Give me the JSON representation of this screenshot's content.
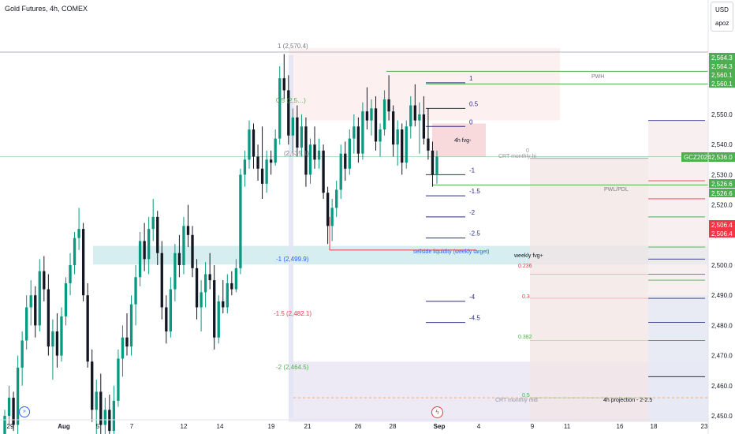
{
  "header": {
    "symbol_title": "Gold Futures, 4h, COMEX",
    "currency": "USD",
    "user": "apoz"
  },
  "icons": {
    "go_to_start": "double-chevron-right-icon",
    "event": "lightning-icon"
  },
  "colors": {
    "up": "#089981",
    "down": "#131722",
    "red": "#f23645",
    "green": "#4caf50",
    "blue": "#2a2e80",
    "accent": "#2962ff"
  },
  "chart_data": {
    "type": "candlestick",
    "instrument": "Gold Futures",
    "timeframe": "4h",
    "exchange": "COMEX",
    "ylim": [
      2448,
      2574
    ],
    "y_ticks": [
      2450,
      2460,
      2470,
      2480,
      2490,
      2500,
      2510,
      2520,
      2530,
      2540,
      2550
    ],
    "x_tick_labels": [
      "29",
      "Aug",
      "5",
      "7",
      "12",
      "14",
      "19",
      "21",
      "26",
      "28",
      "Sep",
      "4",
      "9",
      "11",
      "16",
      "18",
      "23"
    ],
    "last_price_label": {
      "symbol": "GCZ2024",
      "value": "2,536.0"
    },
    "price_labels": [
      {
        "text": "2,564.3",
        "color": "#4caf50"
      },
      {
        "text": "2,564.3",
        "color": "#4caf50"
      },
      {
        "text": "2,560.1",
        "color": "#4caf50"
      },
      {
        "text": "2,560.1",
        "color": "#4caf50"
      },
      {
        "text": "2,526.6",
        "color": "#4caf50"
      },
      {
        "text": "2,526.6",
        "color": "#4caf50"
      },
      {
        "text": "2,506.4",
        "color": "#f23645"
      },
      {
        "text": "2,506.4",
        "color": "#f23645"
      }
    ],
    "fib_labels": [
      "1 (2,570.4)",
      "0.5 (2,5…)",
      "(2,535.1)",
      "-1 (2,499.9)",
      "-1.5 (2,482.1)",
      "-2 (2,464.5)"
    ],
    "projection_levels": [
      "1",
      "0.5",
      "0",
      "-1",
      "-1.5",
      "-2",
      "-2.5",
      "-4",
      "-4.5"
    ],
    "annotations": [
      "PWH",
      "PWL/PDL",
      "4h fvg-",
      "sellside liquidity (weekly target)",
      "weekly fvg+",
      "CRT monthly hi",
      "CRT monthly mid",
      "4h projection - 2-2.5",
      "0",
      "0.236",
      "0.3",
      "0.382",
      "0.5"
    ],
    "candles": [
      {
        "o": 2444,
        "h": 2452,
        "l": 2440,
        "c": 2450
      },
      {
        "o": 2450,
        "h": 2460,
        "l": 2447,
        "c": 2456
      },
      {
        "o": 2456,
        "h": 2458,
        "l": 2445,
        "c": 2447
      },
      {
        "o": 2447,
        "h": 2470,
        "l": 2444,
        "c": 2466
      },
      {
        "o": 2466,
        "h": 2478,
        "l": 2460,
        "c": 2475
      },
      {
        "o": 2475,
        "h": 2490,
        "l": 2472,
        "c": 2486
      },
      {
        "o": 2486,
        "h": 2495,
        "l": 2480,
        "c": 2490
      },
      {
        "o": 2490,
        "h": 2493,
        "l": 2476,
        "c": 2480
      },
      {
        "o": 2480,
        "h": 2502,
        "l": 2478,
        "c": 2498
      },
      {
        "o": 2498,
        "h": 2503,
        "l": 2488,
        "c": 2492
      },
      {
        "o": 2492,
        "h": 2497,
        "l": 2470,
        "c": 2473
      },
      {
        "o": 2473,
        "h": 2482,
        "l": 2462,
        "c": 2478
      },
      {
        "o": 2478,
        "h": 2484,
        "l": 2466,
        "c": 2470
      },
      {
        "o": 2470,
        "h": 2486,
        "l": 2468,
        "c": 2483
      },
      {
        "o": 2483,
        "h": 2496,
        "l": 2480,
        "c": 2494
      },
      {
        "o": 2494,
        "h": 2504,
        "l": 2490,
        "c": 2500
      },
      {
        "o": 2500,
        "h": 2511,
        "l": 2497,
        "c": 2509
      },
      {
        "o": 2509,
        "h": 2519,
        "l": 2505,
        "c": 2512
      },
      {
        "o": 2512,
        "h": 2514,
        "l": 2488,
        "c": 2490
      },
      {
        "o": 2490,
        "h": 2494,
        "l": 2466,
        "c": 2468
      },
      {
        "o": 2468,
        "h": 2472,
        "l": 2448,
        "c": 2452
      },
      {
        "o": 2452,
        "h": 2462,
        "l": 2444,
        "c": 2458
      },
      {
        "o": 2458,
        "h": 2464,
        "l": 2444,
        "c": 2447
      },
      {
        "o": 2447,
        "h": 2456,
        "l": 2440,
        "c": 2452
      },
      {
        "o": 2452,
        "h": 2457,
        "l": 2442,
        "c": 2445
      },
      {
        "o": 2445,
        "h": 2460,
        "l": 2443,
        "c": 2455
      },
      {
        "o": 2455,
        "h": 2472,
        "l": 2453,
        "c": 2469
      },
      {
        "o": 2469,
        "h": 2480,
        "l": 2463,
        "c": 2476
      },
      {
        "o": 2476,
        "h": 2484,
        "l": 2470,
        "c": 2473
      },
      {
        "o": 2473,
        "h": 2490,
        "l": 2470,
        "c": 2487
      },
      {
        "o": 2487,
        "h": 2500,
        "l": 2480,
        "c": 2496
      },
      {
        "o": 2496,
        "h": 2511,
        "l": 2493,
        "c": 2508
      },
      {
        "o": 2508,
        "h": 2514,
        "l": 2498,
        "c": 2502
      },
      {
        "o": 2502,
        "h": 2516,
        "l": 2497,
        "c": 2512
      },
      {
        "o": 2512,
        "h": 2522,
        "l": 2508,
        "c": 2516
      },
      {
        "o": 2516,
        "h": 2518,
        "l": 2500,
        "c": 2504
      },
      {
        "o": 2504,
        "h": 2508,
        "l": 2482,
        "c": 2486
      },
      {
        "o": 2486,
        "h": 2490,
        "l": 2474,
        "c": 2478
      },
      {
        "o": 2478,
        "h": 2496,
        "l": 2476,
        "c": 2492
      },
      {
        "o": 2492,
        "h": 2507,
        "l": 2488,
        "c": 2504
      },
      {
        "o": 2504,
        "h": 2510,
        "l": 2496,
        "c": 2500
      },
      {
        "o": 2500,
        "h": 2516,
        "l": 2497,
        "c": 2513
      },
      {
        "o": 2513,
        "h": 2520,
        "l": 2506,
        "c": 2510
      },
      {
        "o": 2510,
        "h": 2513,
        "l": 2496,
        "c": 2499
      },
      {
        "o": 2499,
        "h": 2502,
        "l": 2482,
        "c": 2486
      },
      {
        "o": 2486,
        "h": 2495,
        "l": 2478,
        "c": 2491
      },
      {
        "o": 2491,
        "h": 2501,
        "l": 2486,
        "c": 2497
      },
      {
        "o": 2497,
        "h": 2504,
        "l": 2492,
        "c": 2495
      },
      {
        "o": 2495,
        "h": 2500,
        "l": 2472,
        "c": 2476
      },
      {
        "o": 2476,
        "h": 2490,
        "l": 2474,
        "c": 2488
      },
      {
        "o": 2488,
        "h": 2495,
        "l": 2484,
        "c": 2486
      },
      {
        "o": 2486,
        "h": 2497,
        "l": 2484,
        "c": 2494
      },
      {
        "o": 2494,
        "h": 2498,
        "l": 2490,
        "c": 2492
      },
      {
        "o": 2492,
        "h": 2502,
        "l": 2491,
        "c": 2499
      },
      {
        "o": 2499,
        "h": 2532,
        "l": 2497,
        "c": 2530
      },
      {
        "o": 2530,
        "h": 2538,
        "l": 2526,
        "c": 2535
      },
      {
        "o": 2535,
        "h": 2548,
        "l": 2532,
        "c": 2545
      },
      {
        "o": 2545,
        "h": 2547,
        "l": 2532,
        "c": 2536
      },
      {
        "o": 2536,
        "h": 2540,
        "l": 2528,
        "c": 2532
      },
      {
        "o": 2532,
        "h": 2546,
        "l": 2522,
        "c": 2527
      },
      {
        "o": 2527,
        "h": 2538,
        "l": 2524,
        "c": 2535
      },
      {
        "o": 2535,
        "h": 2538,
        "l": 2530,
        "c": 2534
      },
      {
        "o": 2534,
        "h": 2545,
        "l": 2533,
        "c": 2542
      },
      {
        "o": 2542,
        "h": 2566,
        "l": 2540,
        "c": 2562
      },
      {
        "o": 2562,
        "h": 2570,
        "l": 2555,
        "c": 2558
      },
      {
        "o": 2558,
        "h": 2563,
        "l": 2540,
        "c": 2543
      },
      {
        "o": 2543,
        "h": 2552,
        "l": 2538,
        "c": 2549
      },
      {
        "o": 2549,
        "h": 2553,
        "l": 2536,
        "c": 2539
      },
      {
        "o": 2539,
        "h": 2550,
        "l": 2536,
        "c": 2546
      },
      {
        "o": 2546,
        "h": 2549,
        "l": 2526,
        "c": 2530
      },
      {
        "o": 2530,
        "h": 2542,
        "l": 2527,
        "c": 2540
      },
      {
        "o": 2540,
        "h": 2546,
        "l": 2532,
        "c": 2535
      },
      {
        "o": 2535,
        "h": 2542,
        "l": 2532,
        "c": 2538
      },
      {
        "o": 2538,
        "h": 2540,
        "l": 2522,
        "c": 2524
      },
      {
        "o": 2524,
        "h": 2526,
        "l": 2507,
        "c": 2513
      },
      {
        "o": 2513,
        "h": 2522,
        "l": 2508,
        "c": 2519
      },
      {
        "o": 2519,
        "h": 2528,
        "l": 2516,
        "c": 2525
      },
      {
        "o": 2525,
        "h": 2540,
        "l": 2522,
        "c": 2537
      },
      {
        "o": 2537,
        "h": 2541,
        "l": 2528,
        "c": 2532
      },
      {
        "o": 2532,
        "h": 2545,
        "l": 2530,
        "c": 2542
      },
      {
        "o": 2542,
        "h": 2550,
        "l": 2537,
        "c": 2546
      },
      {
        "o": 2546,
        "h": 2549,
        "l": 2534,
        "c": 2537
      },
      {
        "o": 2537,
        "h": 2554,
        "l": 2535,
        "c": 2551
      },
      {
        "o": 2551,
        "h": 2559,
        "l": 2545,
        "c": 2548
      },
      {
        "o": 2548,
        "h": 2555,
        "l": 2543,
        "c": 2552
      },
      {
        "o": 2552,
        "h": 2556,
        "l": 2538,
        "c": 2541
      },
      {
        "o": 2541,
        "h": 2547,
        "l": 2536,
        "c": 2545
      },
      {
        "o": 2545,
        "h": 2558,
        "l": 2543,
        "c": 2555
      },
      {
        "o": 2555,
        "h": 2563,
        "l": 2548,
        "c": 2551
      },
      {
        "o": 2551,
        "h": 2553,
        "l": 2536,
        "c": 2540
      },
      {
        "o": 2540,
        "h": 2548,
        "l": 2533,
        "c": 2545
      },
      {
        "o": 2545,
        "h": 2547,
        "l": 2530,
        "c": 2534
      },
      {
        "o": 2534,
        "h": 2548,
        "l": 2532,
        "c": 2546
      },
      {
        "o": 2546,
        "h": 2556,
        "l": 2542,
        "c": 2553
      },
      {
        "o": 2553,
        "h": 2560,
        "l": 2546,
        "c": 2548
      },
      {
        "o": 2548,
        "h": 2554,
        "l": 2537,
        "c": 2550
      },
      {
        "o": 2550,
        "h": 2556,
        "l": 2540,
        "c": 2542
      },
      {
        "o": 2542,
        "h": 2552,
        "l": 2535,
        "c": 2538
      },
      {
        "o": 2538,
        "h": 2541,
        "l": 2526,
        "c": 2530
      },
      {
        "o": 2530,
        "h": 2538,
        "l": 2527,
        "c": 2536
      }
    ]
  }
}
